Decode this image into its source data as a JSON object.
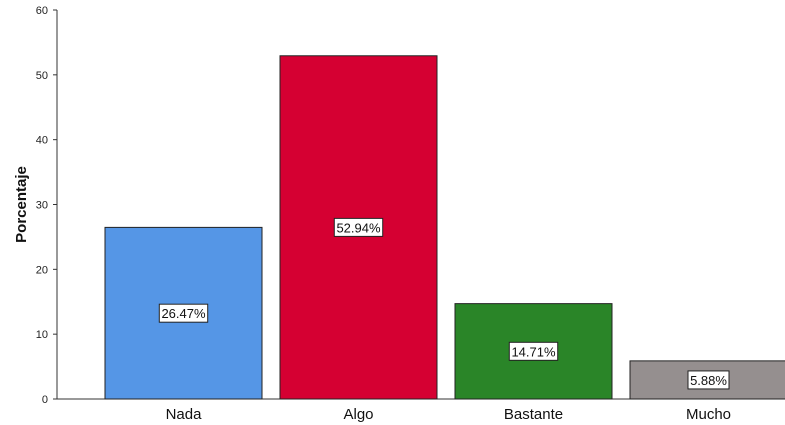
{
  "chart_data": {
    "type": "bar",
    "ylabel": "Porcentaje",
    "xlabel": "",
    "ylim": [
      0,
      60
    ],
    "yticks": [
      0,
      10,
      20,
      30,
      40,
      50,
      60
    ],
    "categories": [
      "Nada",
      "Algo",
      "Bastante",
      "Mucho"
    ],
    "values": [
      26.47,
      52.94,
      14.71,
      5.88
    ],
    "data_labels": [
      "26.47%",
      "52.94%",
      "14.71%",
      "5.88%"
    ],
    "colors": [
      "#5596e6",
      "#d50032",
      "#2a8528",
      "#958f8f"
    ],
    "grid": false
  }
}
